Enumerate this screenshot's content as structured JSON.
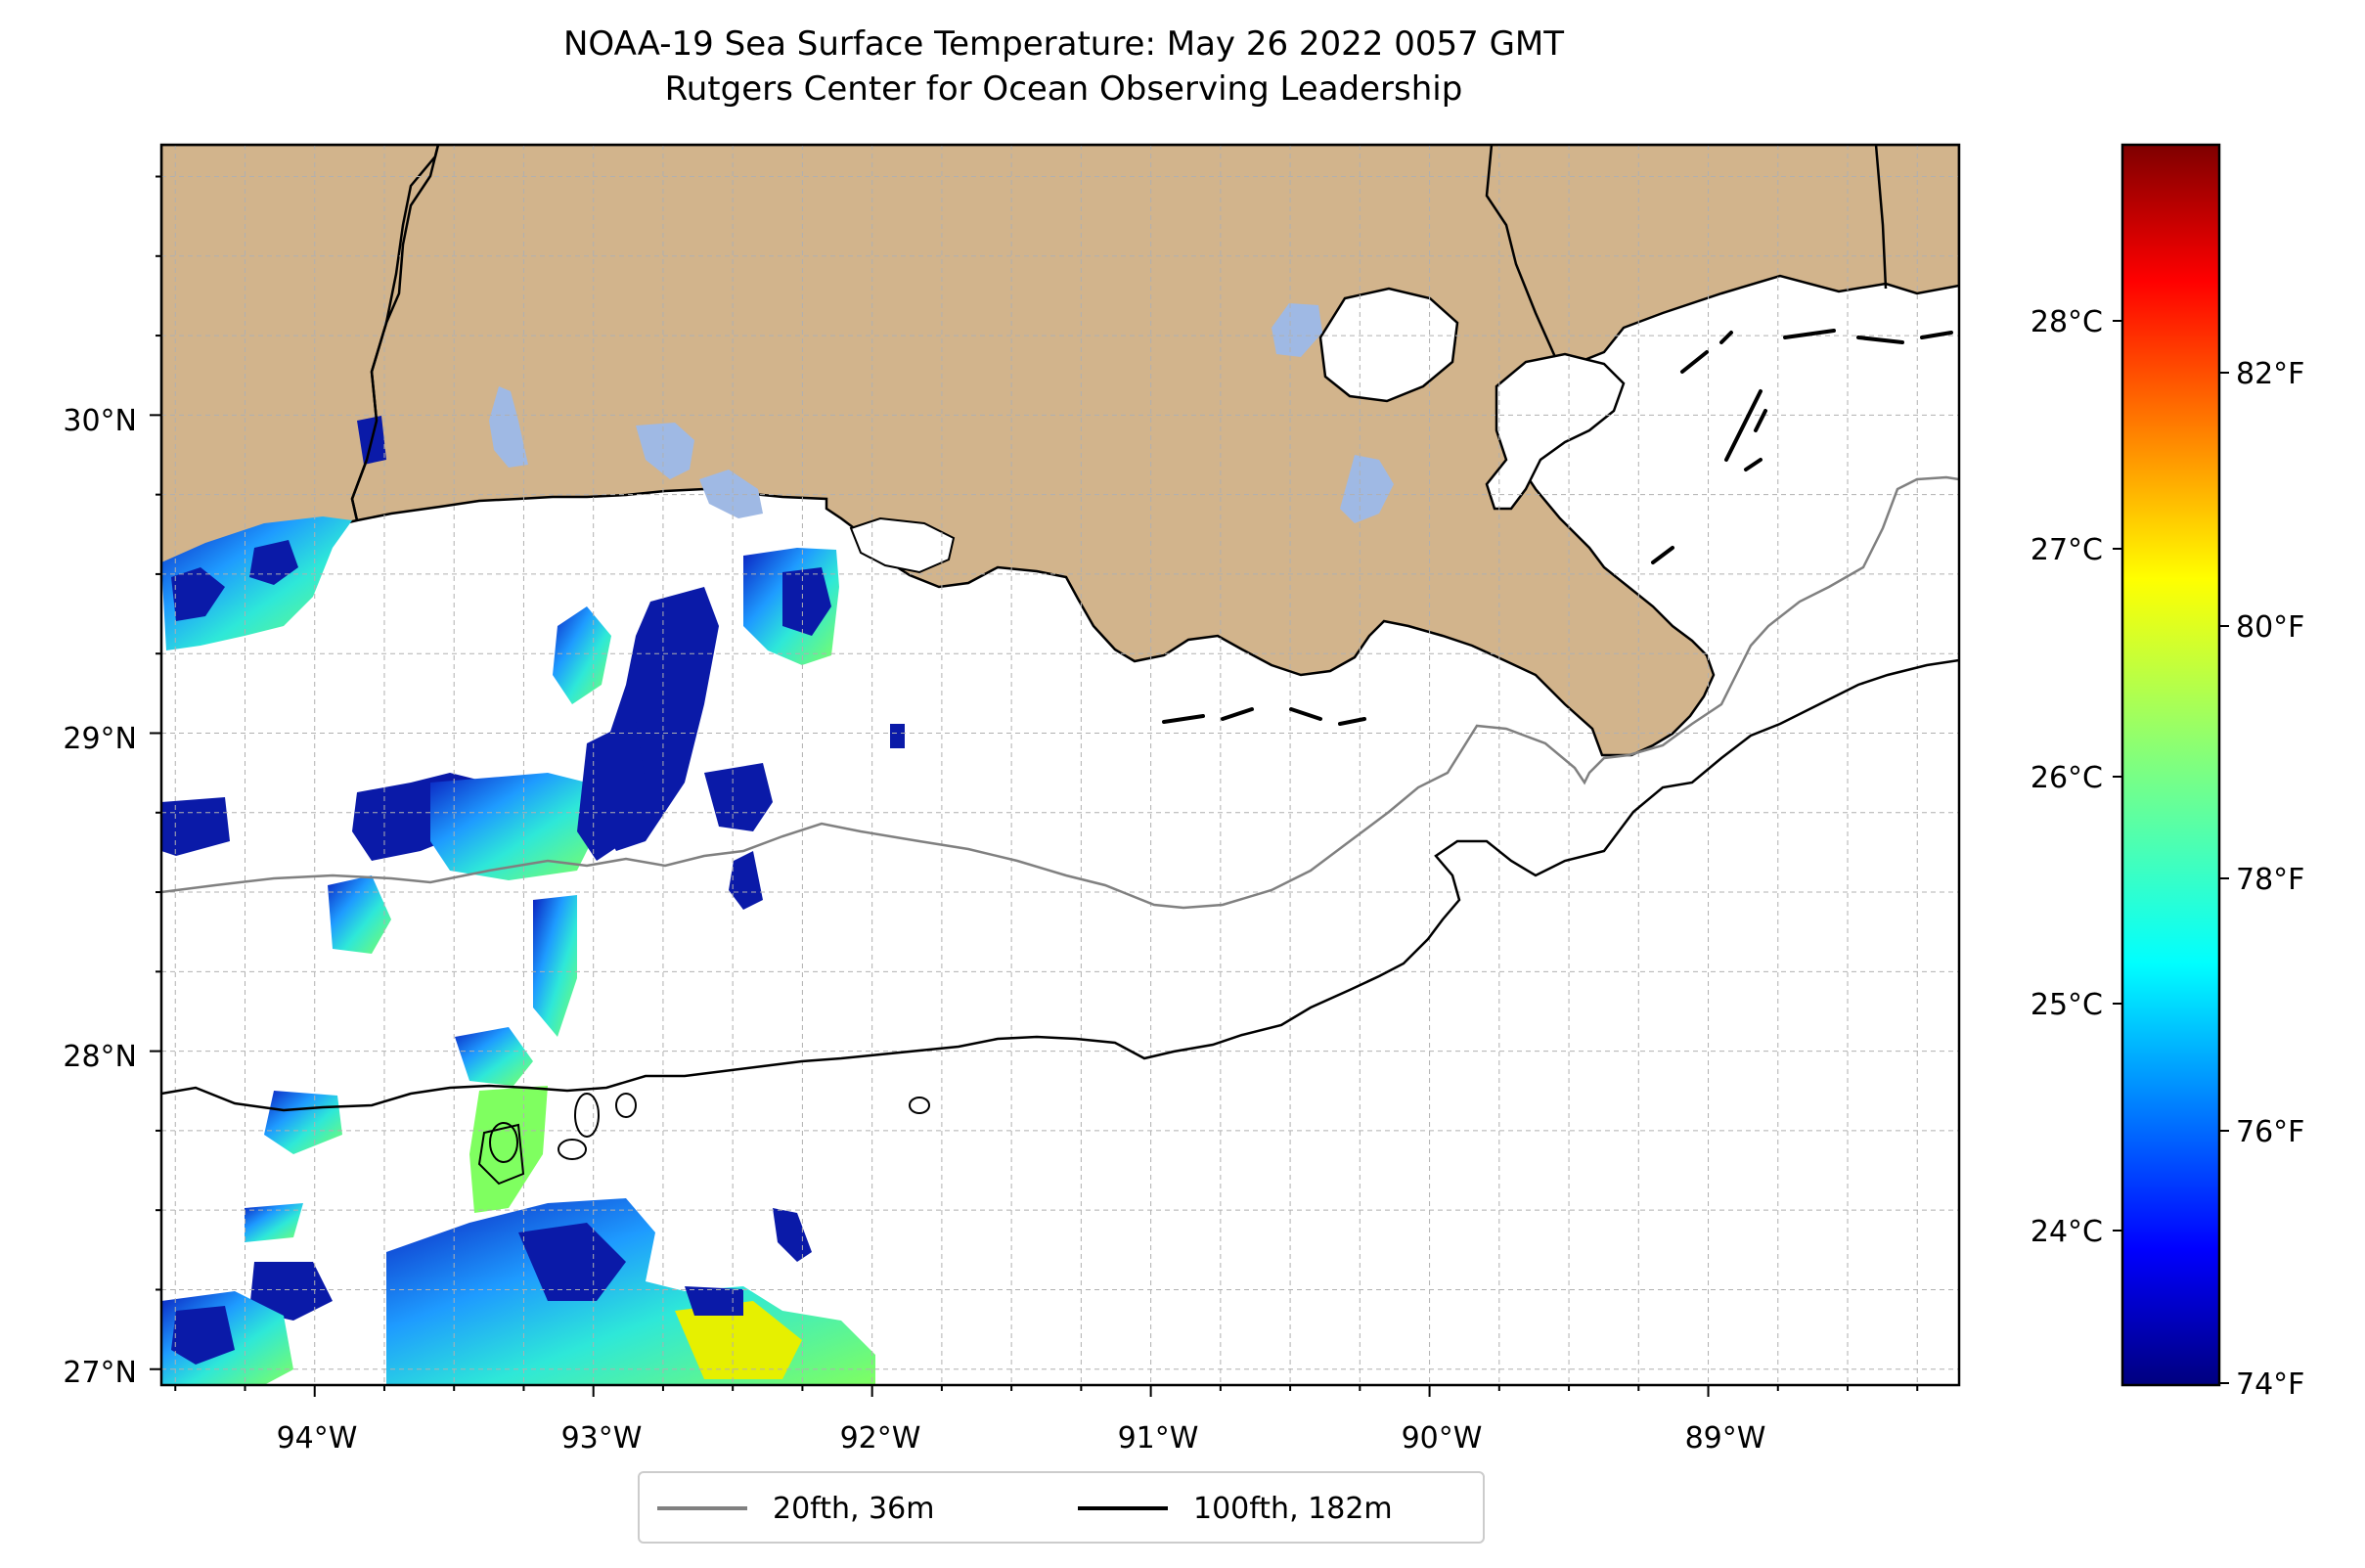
{
  "title": {
    "line1": "NOAA-19 Sea Surface Temperature: May 26 2022 0057 GMT",
    "line2": "Rutgers Center for Ocean Observing Leadership"
  },
  "map": {
    "lon_ticks": [
      "94°W",
      "93°W",
      "92°W",
      "91°W",
      "90°W",
      "89°W"
    ],
    "lat_ticks": [
      "30°N",
      "29°N",
      "28°N",
      "27°N"
    ],
    "extent": {
      "lon": [
        -94.55,
        -88.1
      ],
      "lat": [
        26.95,
        30.85
      ]
    },
    "land_color": "#d2b48c",
    "lake_color": "#9fb9e4",
    "grid": true
  },
  "legend": {
    "items": [
      {
        "label": "20fth, 36m",
        "color": "#808080"
      },
      {
        "label": "100fth, 182m",
        "color": "#000000"
      }
    ]
  },
  "colorbar": {
    "celsius_ticks": [
      "28°C",
      "27°C",
      "26°C",
      "25°C",
      "24°C"
    ],
    "fahrenheit_ticks": [
      "82°F",
      "80°F",
      "78°F",
      "76°F",
      "74°F"
    ],
    "colormap": "jet",
    "colors": [
      "#00007f",
      "#0000ff",
      "#007fff",
      "#00ffff",
      "#7fff7f",
      "#ffff00",
      "#ff7f00",
      "#ff0000",
      "#7f0000"
    ]
  }
}
